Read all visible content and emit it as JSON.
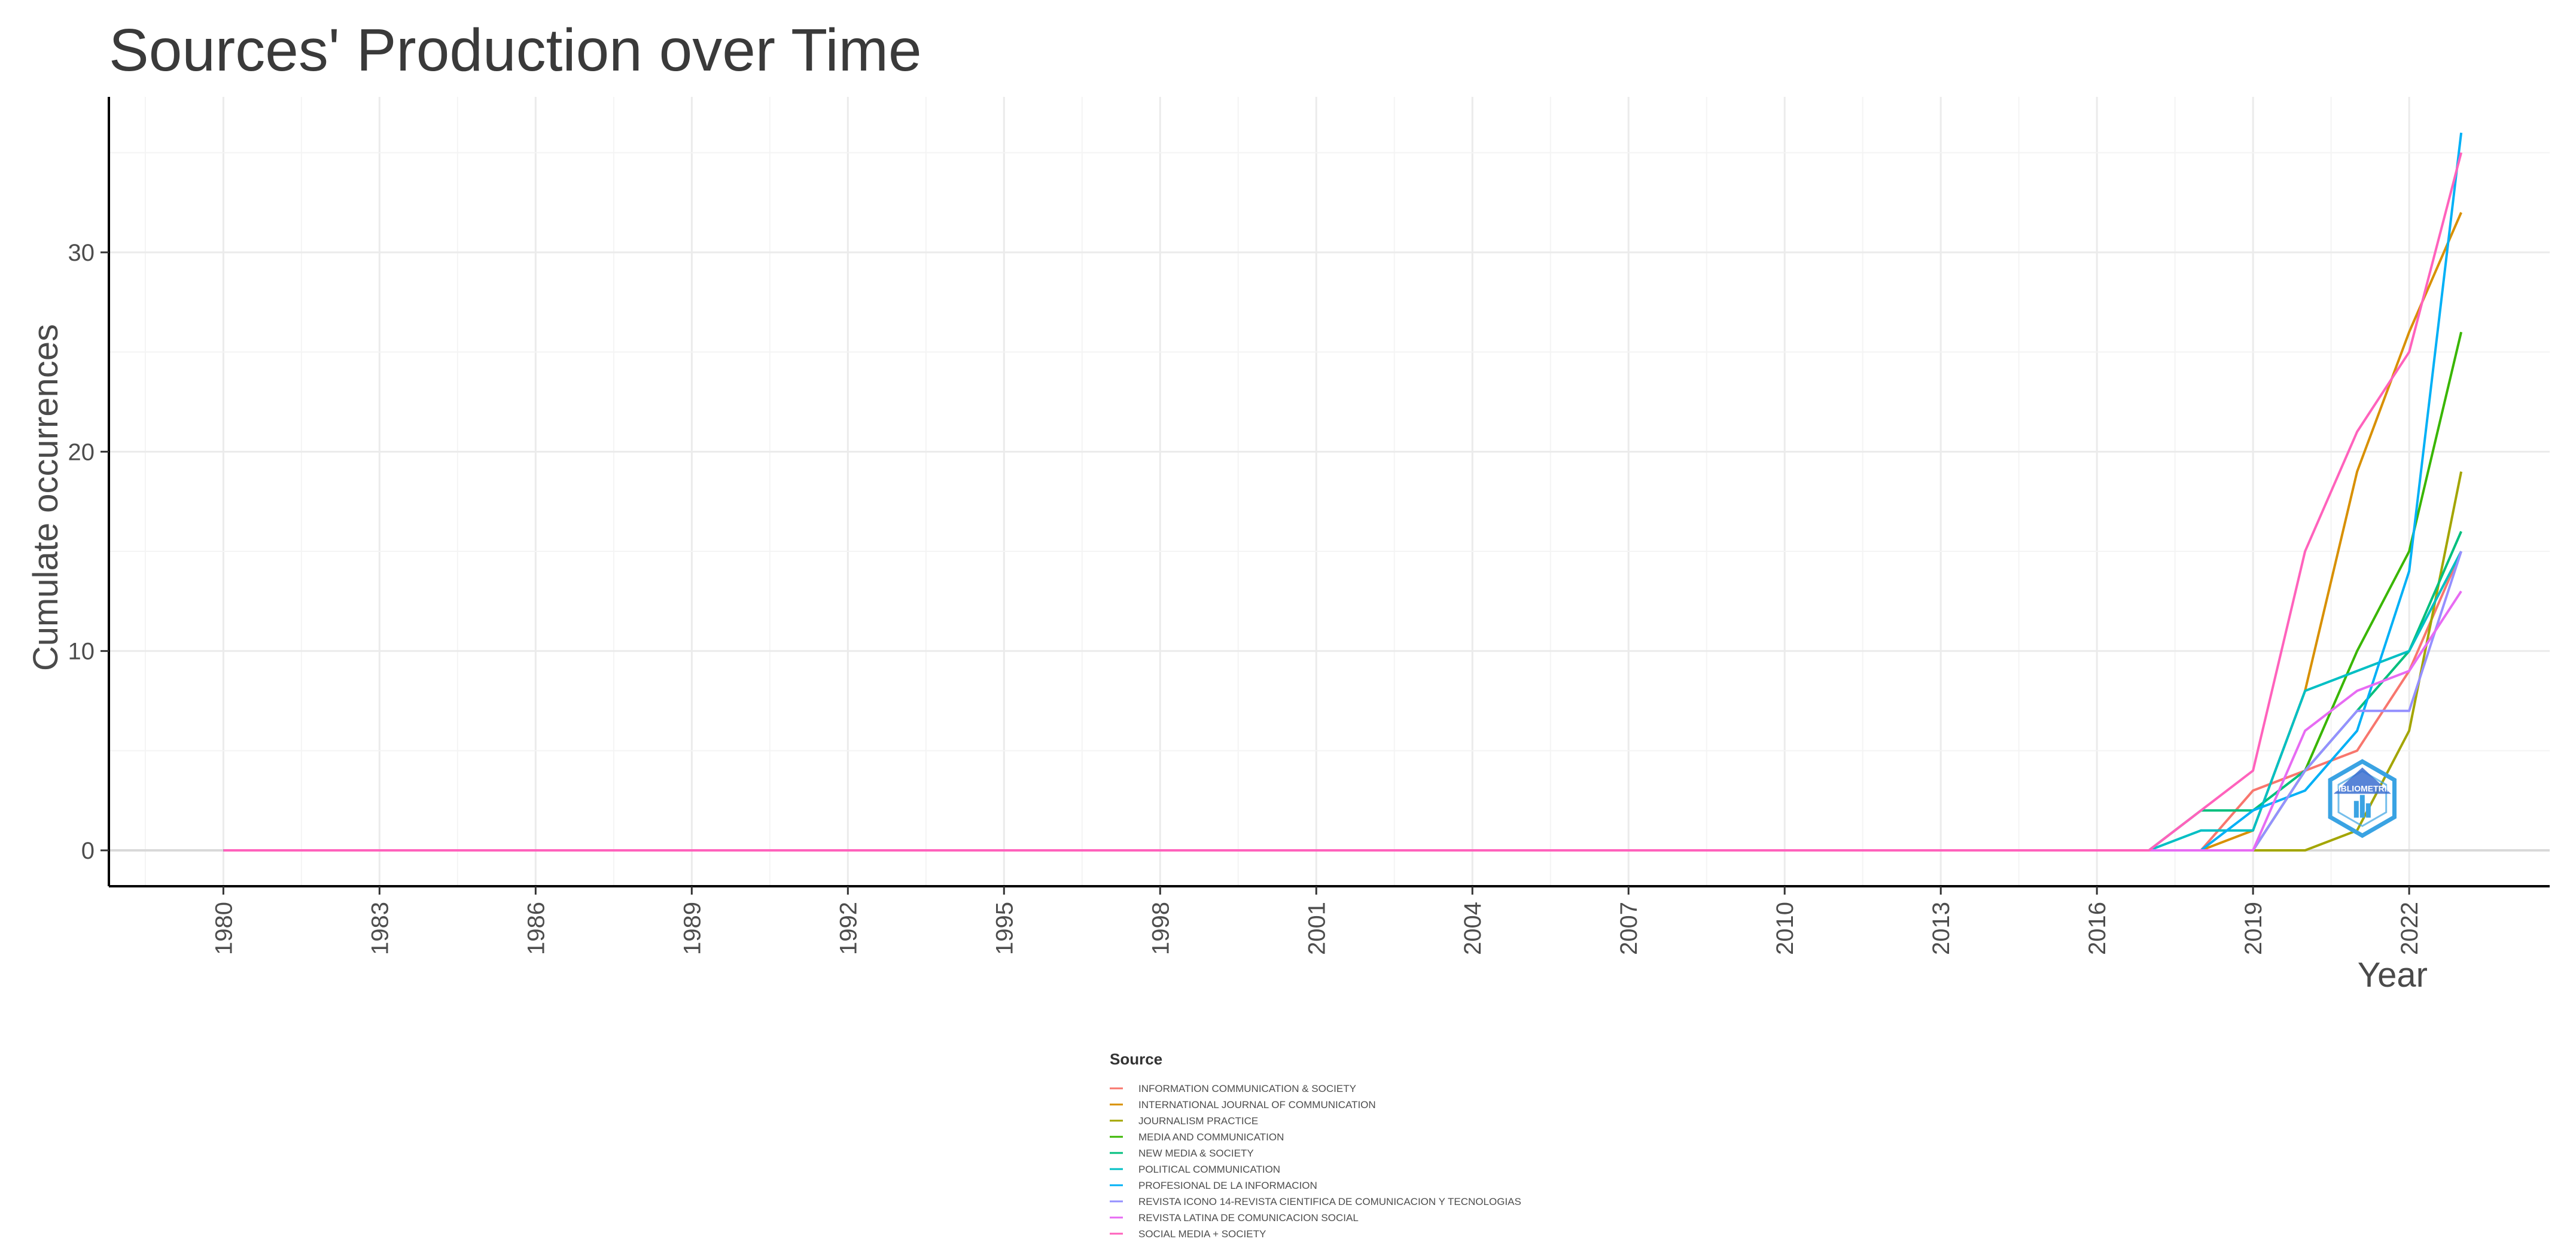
{
  "chart_data": {
    "type": "line",
    "title": "Sources' Production over Time",
    "xlabel": "Year",
    "ylabel": "Cumulate occurrences",
    "xlim": [
      1977.8,
      2024.7
    ],
    "ylim": [
      -1.8,
      37.8
    ],
    "x_ticks": [
      1980,
      1983,
      1986,
      1989,
      1992,
      1995,
      1998,
      2001,
      2004,
      2007,
      2010,
      2013,
      2016,
      2019,
      2022
    ],
    "y_ticks": [
      0,
      10,
      20,
      30
    ],
    "grid": true,
    "legend": {
      "title": "Source",
      "position": "bottom"
    },
    "series": [
      {
        "name": "INFORMATION COMMUNICATION & SOCIETY",
        "color": "#F8766D",
        "x": [
          1980,
          2017,
          2018,
          2019,
          2020,
          2021,
          2022,
          2023
        ],
        "y": [
          0,
          0,
          0,
          3,
          4,
          5,
          9,
          15
        ]
      },
      {
        "name": "INTERNATIONAL JOURNAL OF COMMUNICATION",
        "color": "#D89000",
        "x": [
          1980,
          2017,
          2018,
          2019,
          2020,
          2021,
          2022,
          2023
        ],
        "y": [
          0,
          0,
          0,
          1,
          8,
          19,
          26,
          32
        ]
      },
      {
        "name": "JOURNALISM PRACTICE",
        "color": "#A3A500",
        "x": [
          1980,
          2017,
          2018,
          2019,
          2020,
          2021,
          2022,
          2023
        ],
        "y": [
          0,
          0,
          0,
          0,
          0,
          1,
          6,
          19
        ]
      },
      {
        "name": "MEDIA AND COMMUNICATION",
        "color": "#39B600",
        "x": [
          1980,
          2017,
          2018,
          2019,
          2020,
          2021,
          2022,
          2023
        ],
        "y": [
          0,
          0,
          0,
          0,
          4,
          10,
          15,
          26
        ]
      },
      {
        "name": "NEW MEDIA & SOCIETY",
        "color": "#00BF7D",
        "x": [
          1980,
          2017,
          2018,
          2019,
          2020,
          2021,
          2022,
          2023
        ],
        "y": [
          0,
          0,
          2,
          2,
          4,
          7,
          10,
          16
        ]
      },
      {
        "name": "POLITICAL COMMUNICATION",
        "color": "#00BFC4",
        "x": [
          1980,
          2017,
          2018,
          2019,
          2020,
          2021,
          2022,
          2023
        ],
        "y": [
          0,
          0,
          1,
          1,
          8,
          9,
          10,
          15
        ]
      },
      {
        "name": "PROFESIONAL DE LA INFORMACION",
        "color": "#00B0F6",
        "x": [
          1980,
          2017,
          2018,
          2019,
          2020,
          2021,
          2022,
          2023
        ],
        "y": [
          0,
          0,
          0,
          2,
          3,
          6,
          14,
          36
        ]
      },
      {
        "name": "REVISTA ICONO 14-REVISTA CIENTIFICA DE COMUNICACION Y TECNOLOGIAS",
        "color": "#9590FF",
        "x": [
          1980,
          2017,
          2018,
          2019,
          2020,
          2021,
          2022,
          2023
        ],
        "y": [
          0,
          0,
          0,
          0,
          4,
          7,
          7,
          15
        ]
      },
      {
        "name": "REVISTA LATINA DE COMUNICACION SOCIAL",
        "color": "#E76BF3",
        "x": [
          1980,
          2017,
          2018,
          2019,
          2020,
          2021,
          2022,
          2023
        ],
        "y": [
          0,
          0,
          0,
          0,
          6,
          8,
          9,
          13
        ]
      },
      {
        "name": "SOCIAL MEDIA + SOCIETY",
        "color": "#FF62BC",
        "x": [
          1980,
          2017,
          2018,
          2019,
          2020,
          2021,
          2022,
          2023
        ],
        "y": [
          0,
          0,
          2,
          4,
          15,
          21,
          25,
          35
        ]
      }
    ]
  },
  "watermark": {
    "icon": "bibliometrix-logo-icon",
    "text": "BIBLIOMETRIX",
    "color": "#3aa3e3"
  }
}
